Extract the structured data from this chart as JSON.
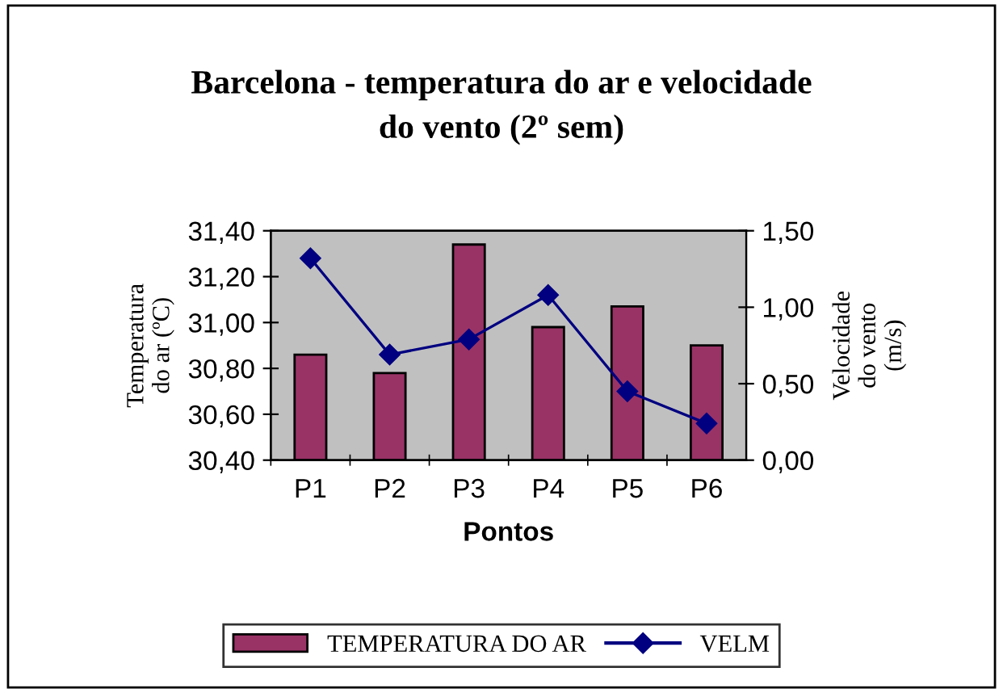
{
  "chart_data": {
    "type": "bar",
    "title": "Barcelona - temperatura do ar e velocidade\ndo vento (2º sem)",
    "xlabel": "Pontos",
    "ylabel": "Temperatura\ndo ar (ºC)",
    "y2label": "Velocidade\ndo vento\n(m/s)",
    "categories": [
      "P1",
      "P2",
      "P3",
      "P4",
      "P5",
      "P6"
    ],
    "series": [
      {
        "name": "TEMPERATURA DO AR",
        "color": "#993366",
        "values": [
          30.86,
          30.78,
          31.34,
          30.98,
          31.07,
          30.9
        ]
      },
      {
        "name": "VELM",
        "type": "line",
        "axis": "y2",
        "color": "#000080",
        "marker": "diamond",
        "values": [
          1.32,
          0.69,
          0.79,
          1.08,
          0.45,
          0.24
        ]
      }
    ],
    "ylim": [
      30.4,
      31.4
    ],
    "yticks": [
      {
        "value": 30.4,
        "label": "30,40"
      },
      {
        "value": 30.6,
        "label": "30,60"
      },
      {
        "value": 30.8,
        "label": "30,80"
      },
      {
        "value": 31.0,
        "label": "31,00"
      },
      {
        "value": 31.2,
        "label": "31,20"
      },
      {
        "value": 31.4,
        "label": "31,40"
      }
    ],
    "y2lim": [
      0,
      1.5
    ],
    "y2ticks": [
      {
        "value": 0,
        "label": "0,00"
      },
      {
        "value": 0.5,
        "label": "0,50"
      },
      {
        "value": 1.0,
        "label": "1,00"
      },
      {
        "value": 1.5,
        "label": "1,50"
      }
    ],
    "grid": false,
    "legend": "bottom"
  }
}
